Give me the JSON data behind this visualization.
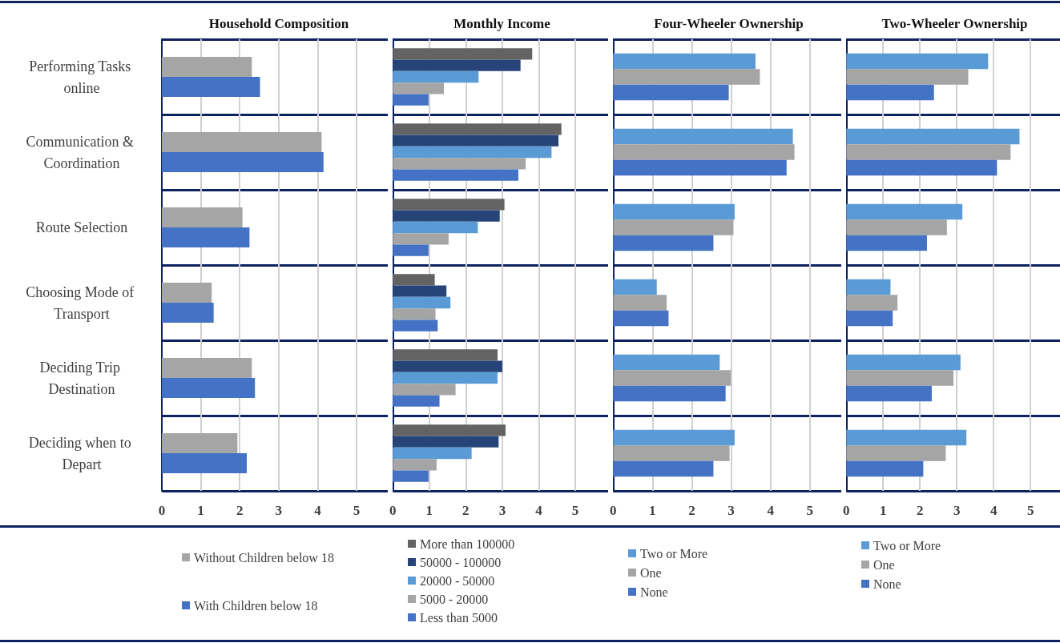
{
  "chart_data": [
    {
      "type": "bar",
      "orientation": "horizontal",
      "title": "Household Composition",
      "categories": [
        "Performing Tasks online",
        "Communication & Coordination",
        "Route Selection",
        "Choosing Mode of Transport",
        "Deciding Trip Destination",
        "Deciding when to Depart"
      ],
      "series": [
        {
          "name": "Without Children below 18",
          "color": "#a5a5a5",
          "values": [
            2.31,
            4.1,
            2.07,
            1.28,
            2.31,
            1.94
          ]
        },
        {
          "name": "With Children below 18",
          "color": "#4472c4",
          "values": [
            2.52,
            4.15,
            2.25,
            1.33,
            2.39,
            2.18
          ]
        }
      ],
      "xlim": [
        0,
        5.8
      ],
      "xticks": [
        0,
        1,
        2,
        3,
        4,
        5
      ],
      "grid": "x",
      "legend": "bottom"
    },
    {
      "type": "bar",
      "orientation": "horizontal",
      "title": "Monthly Income",
      "categories": [
        "Performing Tasks online",
        "Communication & Coordination",
        "Route Selection",
        "Choosing Mode of Transport",
        "Deciding Trip Destination",
        "Deciding when to Depart"
      ],
      "series": [
        {
          "name": "More than 100000",
          "color": "#636363",
          "values": [
            3.82,
            4.62,
            3.06,
            1.15,
            2.87,
            3.09
          ]
        },
        {
          "name": "50000 - 100000",
          "color": "#264478",
          "values": [
            3.5,
            4.54,
            2.93,
            1.47,
            3.0,
            2.9
          ]
        },
        {
          "name": "20000 - 50000",
          "color": "#5b9bd5",
          "values": [
            2.35,
            4.35,
            2.33,
            1.58,
            2.87,
            2.16
          ]
        },
        {
          "name": "5000 - 20000",
          "color": "#a5a5a5",
          "values": [
            1.4,
            3.64,
            1.53,
            1.17,
            1.72,
            1.2
          ]
        },
        {
          "name": "Less than 5000",
          "color": "#4472c4",
          "values": [
            0.98,
            3.44,
            0.98,
            1.23,
            1.28,
            0.98
          ]
        }
      ],
      "xlim": [
        0,
        5.9
      ],
      "xticks": [
        0,
        1,
        2,
        3,
        4,
        5
      ],
      "grid": "x",
      "legend": "bottom",
      "tick_labels": "x"
    },
    {
      "type": "bar",
      "orientation": "horizontal",
      "title": "Four-Wheeler Ownership",
      "categories": [
        "Performing Tasks online",
        "Communication & Coordination",
        "Route Selection",
        "Choosing Mode of Transport",
        "Deciding Trip Destination",
        "Deciding when to Depart"
      ],
      "series": [
        {
          "name": "Two or More",
          "color": "#5b9bd5",
          "values": [
            3.62,
            4.57,
            3.09,
            1.11,
            2.71,
            3.09
          ]
        },
        {
          "name": "One",
          "color": "#a5a5a5",
          "values": [
            3.73,
            4.61,
            3.06,
            1.36,
            2.99,
            2.96
          ]
        },
        {
          "name": "None",
          "color": "#4472c4",
          "values": [
            2.94,
            4.41,
            2.55,
            1.41,
            2.86,
            2.55
          ]
        }
      ],
      "xlim": [
        0,
        5.8
      ],
      "xticks": [
        0,
        1,
        2,
        3,
        4,
        5
      ],
      "grid": "x",
      "legend": "bottom",
      "tick_labels": "x"
    },
    {
      "type": "bar",
      "orientation": "horizontal",
      "title": "Two-Wheeler Ownership",
      "categories": [
        "Performing Tasks online",
        "Communication & Coordination",
        "Route Selection",
        "Choosing Mode of Transport",
        "Deciding Trip Destination",
        "Deciding when to Depart"
      ],
      "series": [
        {
          "name": "Two or More",
          "color": "#5b9bd5",
          "values": [
            3.85,
            4.7,
            3.15,
            1.2,
            3.1,
            3.26
          ]
        },
        {
          "name": "One",
          "color": "#a5a5a5",
          "values": [
            3.31,
            4.46,
            2.73,
            1.39,
            2.91,
            2.7
          ]
        },
        {
          "name": "None",
          "color": "#4472c4",
          "values": [
            2.38,
            4.09,
            2.19,
            1.26,
            2.32,
            2.09
          ]
        }
      ],
      "xlim": [
        0,
        5.8
      ],
      "xticks": [
        0,
        1,
        2,
        3,
        4,
        5
      ],
      "grid": "x",
      "legend": "bottom",
      "tick_labels": "x"
    }
  ]
}
